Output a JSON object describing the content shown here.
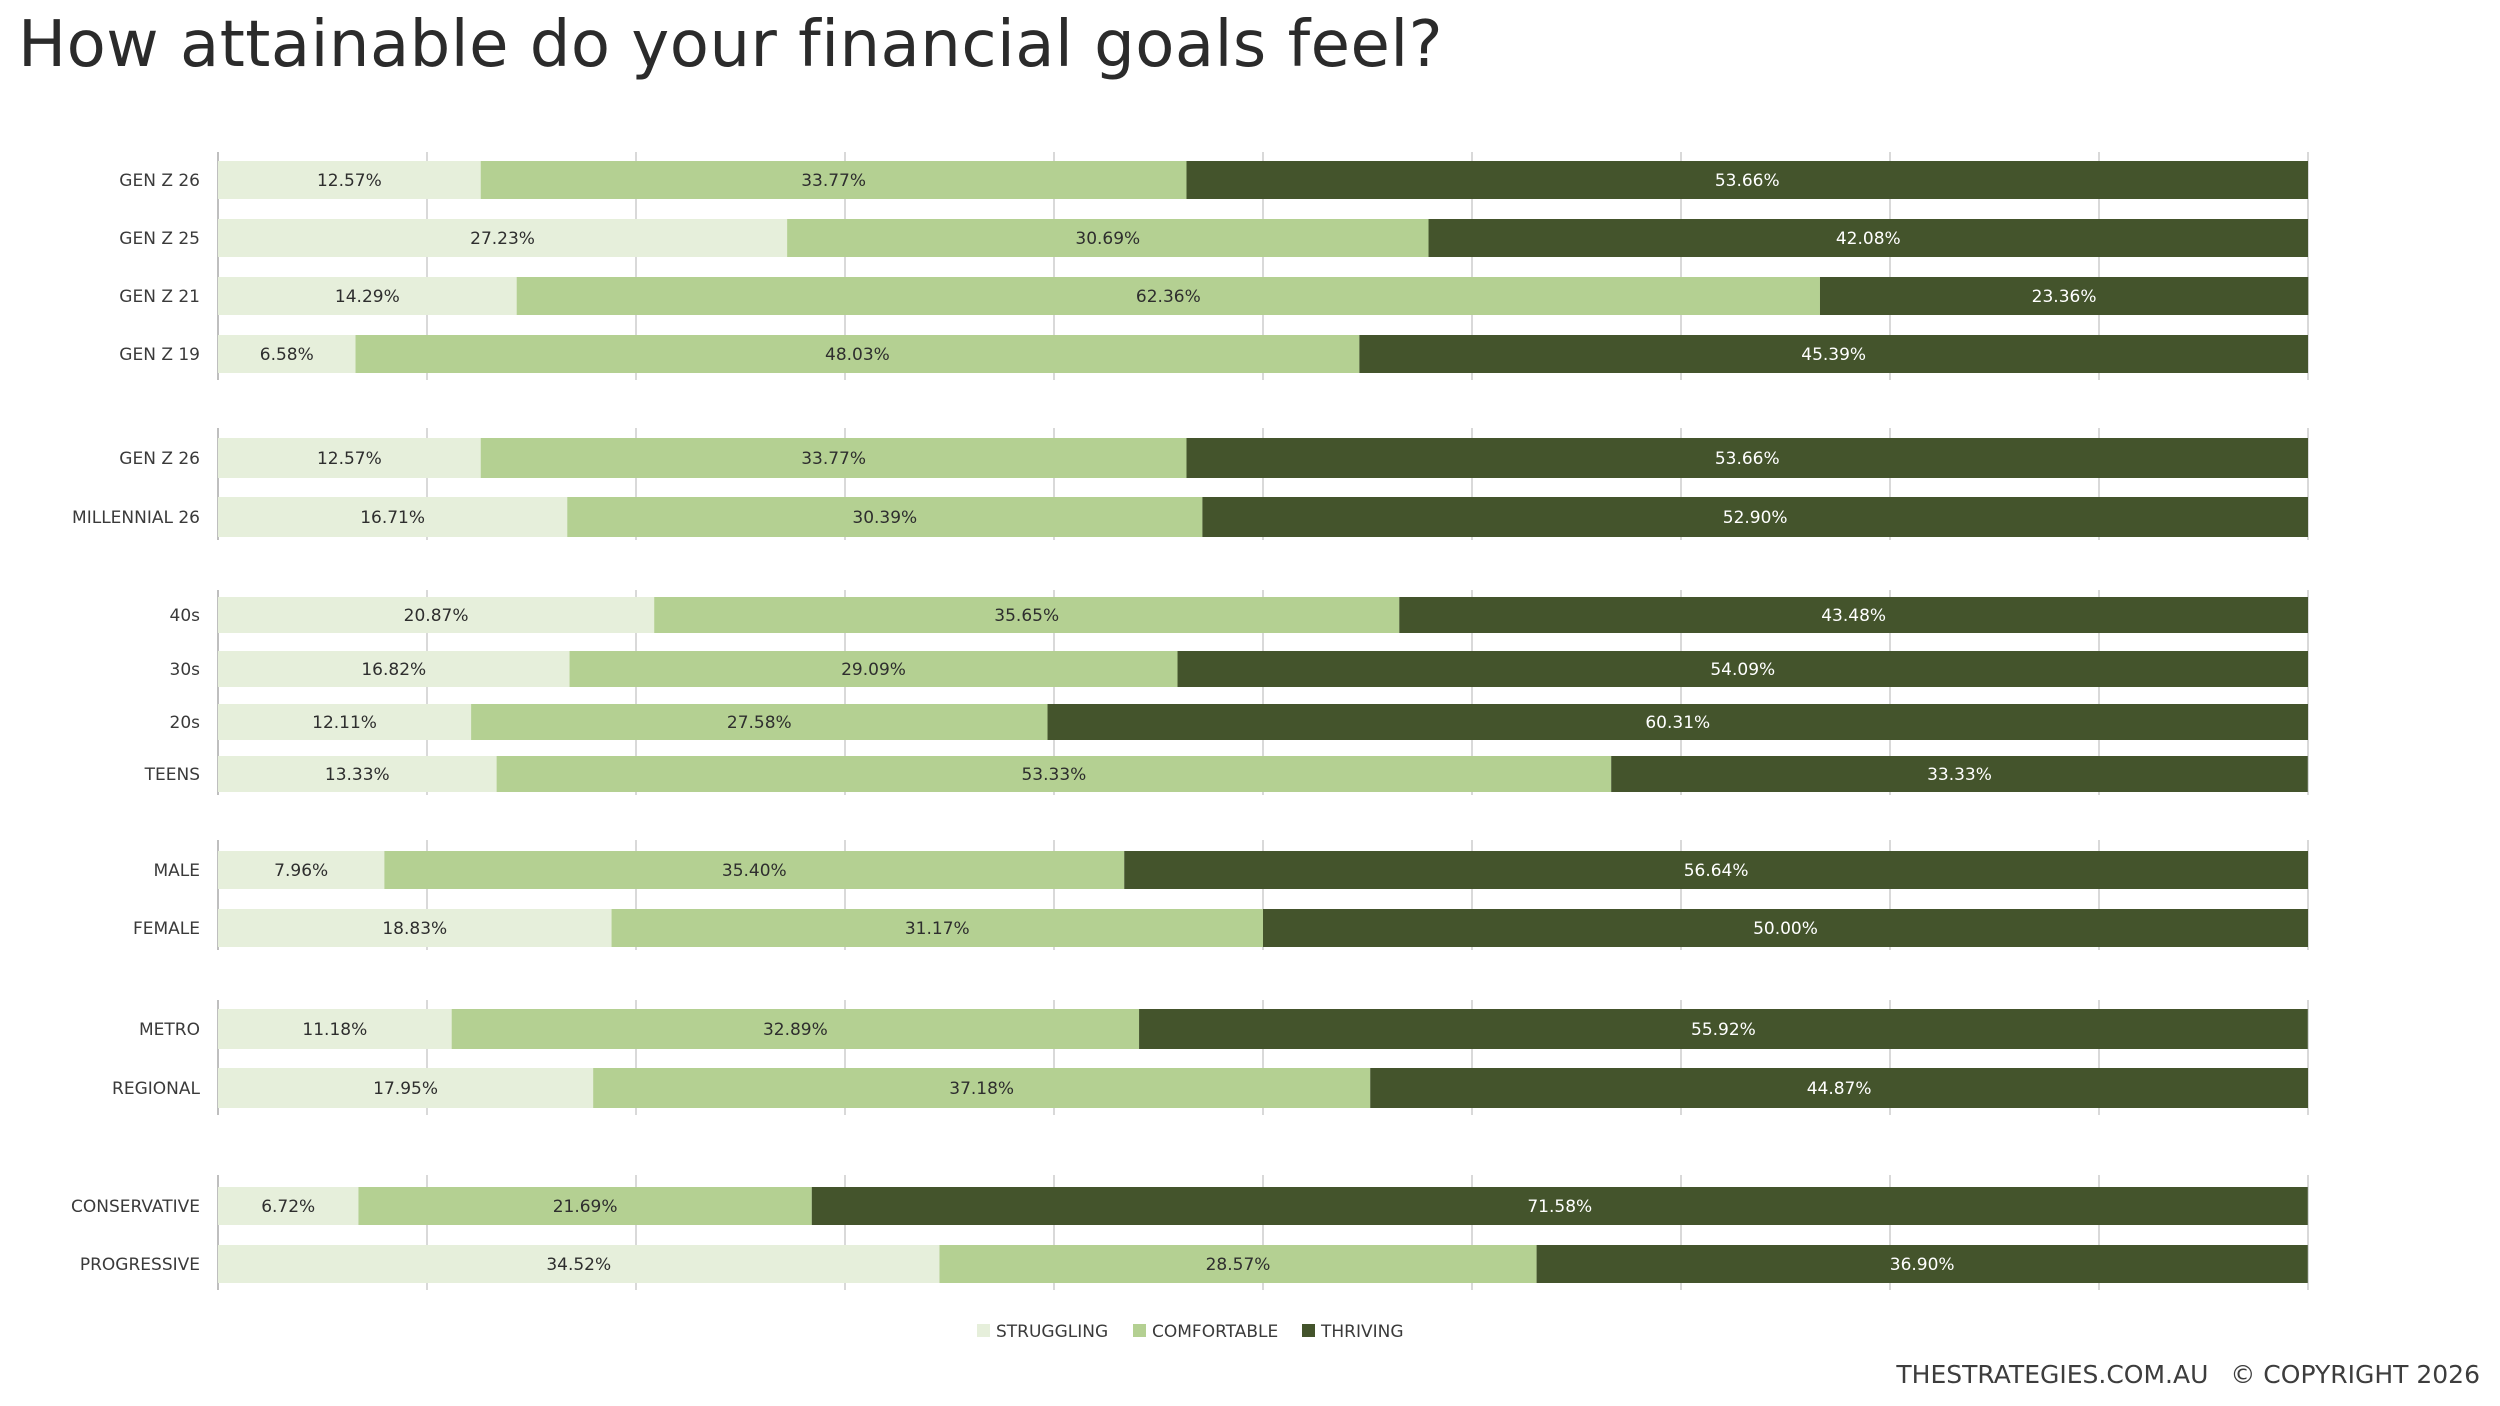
{
  "title": "How attainable do your financial goals feel?",
  "footer": {
    "site": "THESTRATEGIES.COM.AU",
    "copyright": "© COPYRIGHT 2026"
  },
  "chart_data": {
    "type": "bar",
    "orientation": "horizontal",
    "stacked": true,
    "xlim": [
      0,
      100
    ],
    "grid": true,
    "legend_position": "bottom",
    "series": [
      {
        "name": "STRUGGLING",
        "color": "#e6efdb"
      },
      {
        "name": "COMFORTABLE",
        "color": "#b4d092"
      },
      {
        "name": "THRIVING",
        "color": "#44542c"
      }
    ],
    "groups": [
      {
        "bars": [
          {
            "label": "GEN Z 26",
            "values": [
              12.57,
              33.77,
              53.66
            ]
          },
          {
            "label": "GEN Z 25",
            "values": [
              27.23,
              30.69,
              42.08
            ]
          },
          {
            "label": "GEN Z 21",
            "values": [
              14.29,
              62.36,
              23.36
            ]
          },
          {
            "label": "GEN Z 19",
            "values": [
              6.58,
              48.03,
              45.39
            ]
          }
        ]
      },
      {
        "bars": [
          {
            "label": "GEN Z 26",
            "values": [
              12.57,
              33.77,
              53.66
            ]
          },
          {
            "label": "MILLENNIAL 26",
            "values": [
              16.71,
              30.39,
              52.9
            ]
          }
        ]
      },
      {
        "bars": [
          {
            "label": "40s",
            "values": [
              20.87,
              35.65,
              43.48
            ]
          },
          {
            "label": "30s",
            "values": [
              16.82,
              29.09,
              54.09
            ]
          },
          {
            "label": "20s",
            "values": [
              12.11,
              27.58,
              60.31
            ]
          },
          {
            "label": "TEENS",
            "values": [
              13.33,
              53.33,
              33.33
            ]
          }
        ]
      },
      {
        "bars": [
          {
            "label": "MALE",
            "values": [
              7.96,
              35.4,
              56.64
            ]
          },
          {
            "label": "FEMALE",
            "values": [
              18.83,
              31.17,
              50.0
            ]
          }
        ]
      },
      {
        "bars": [
          {
            "label": "METRO",
            "values": [
              11.18,
              32.89,
              55.92
            ]
          },
          {
            "label": "REGIONAL",
            "values": [
              17.95,
              37.18,
              44.87
            ]
          }
        ]
      },
      {
        "bars": [
          {
            "label": "CONSERVATIVE",
            "values": [
              6.72,
              21.69,
              71.58
            ]
          },
          {
            "label": "PROGRESSIVE",
            "values": [
              34.52,
              28.57,
              36.9
            ]
          }
        ]
      }
    ]
  }
}
